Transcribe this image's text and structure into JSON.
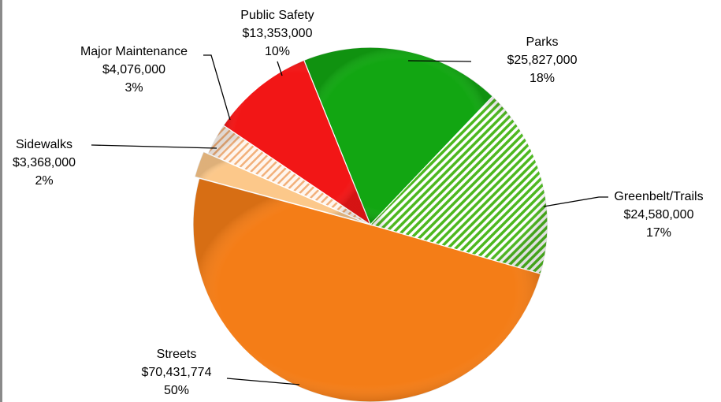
{
  "chart_data": {
    "type": "pie",
    "title": "",
    "start_label": "Parks",
    "slices": [
      {
        "name": "Parks",
        "amount": "$25,827,000",
        "percent": "18%",
        "value": 25827000,
        "color": "#12a612",
        "pattern": "solid"
      },
      {
        "name": "Greenbelt/Trails",
        "amount": "$24,580,000",
        "percent": "17%",
        "value": 24580000,
        "color": "#4db81f",
        "pattern": "diagonal-stripes"
      },
      {
        "name": "Streets",
        "amount": "$70,431,774",
        "percent": "50%",
        "value": 70431774,
        "color": "#f47d17",
        "pattern": "solid"
      },
      {
        "name": "Sidewalks",
        "amount": "$3,368,000",
        "percent": "2%",
        "value": 3368000,
        "color": "#fcc88a",
        "pattern": "solid"
      },
      {
        "name": "Major Maintenance",
        "amount": "$4,076,000",
        "percent": "3%",
        "value": 4076000,
        "color": "#f2b07a",
        "pattern": "diagonal-stripes"
      },
      {
        "name": "Public Safety",
        "amount": "$13,353,000",
        "percent": "10%",
        "value": 13353000,
        "color": "#f21616",
        "pattern": "solid"
      }
    ]
  }
}
